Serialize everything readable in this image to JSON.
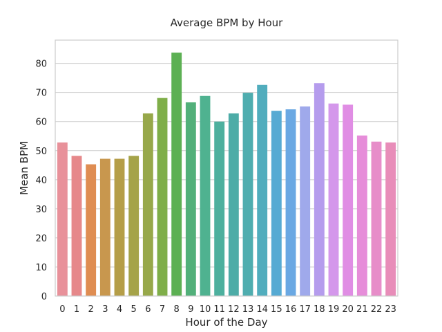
{
  "chart_data": {
    "type": "bar",
    "title": "Average BPM by Hour",
    "xlabel": "Hour of the Day",
    "ylabel": "Mean BPM",
    "ylim": [
      0,
      88
    ],
    "yticks": [
      0,
      10,
      20,
      30,
      40,
      50,
      60,
      70,
      80
    ],
    "grid": true,
    "categories": [
      "0",
      "1",
      "2",
      "3",
      "4",
      "5",
      "6",
      "7",
      "8",
      "9",
      "10",
      "11",
      "12",
      "13",
      "14",
      "15",
      "16",
      "17",
      "18",
      "19",
      "20",
      "21",
      "22",
      "23"
    ],
    "values": [
      52.8,
      48.2,
      45.3,
      47.2,
      47.2,
      48.2,
      62.8,
      68.1,
      83.7,
      66.6,
      68.8,
      60.0,
      62.8,
      69.9,
      72.6,
      63.7,
      64.2,
      65.2,
      73.2,
      66.2,
      65.8,
      55.2,
      53.1,
      52.8
    ],
    "colors": [
      "#e8919a",
      "#e6888a",
      "#df8d52",
      "#c8974e",
      "#b59e48",
      "#a5a349",
      "#97a84a",
      "#7fae49",
      "#5cb053",
      "#52b07a",
      "#4fb290",
      "#4db09e",
      "#4daca7",
      "#4fadaf",
      "#51adbd",
      "#56aad3",
      "#6aa8e3",
      "#9fa9eb",
      "#b59ced",
      "#d497eb",
      "#e08de4",
      "#e68dd9",
      "#e78dc9",
      "#e88db9"
    ]
  }
}
